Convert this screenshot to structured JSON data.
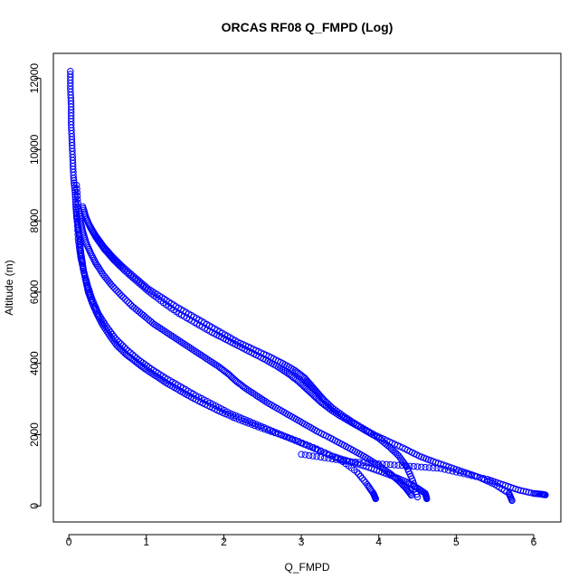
{
  "chart_data": {
    "type": "scatter",
    "title": "ORCAS RF08 Q_FMPD (Log)",
    "xlabel": "Q_FMPD",
    "ylabel": "Altitude (m)",
    "xlim": [
      -0.2,
      6.35
    ],
    "ylim": [
      -450,
      12700
    ],
    "xticks": [
      0,
      1,
      2,
      3,
      4,
      5,
      6
    ],
    "yticks": [
      0,
      2000,
      4000,
      6000,
      8000,
      10000,
      12000
    ],
    "grid": false,
    "legend": "none",
    "marker": "open-circle",
    "color": "#0000ff",
    "series": [
      {
        "profile": "steep-left",
        "x": [
          0.02,
          0.02,
          0.03,
          0.03,
          0.04,
          0.05,
          0.06,
          0.08,
          0.09,
          0.1,
          0.12,
          0.14,
          0.15,
          0.17,
          0.19,
          0.22,
          0.25,
          0.3,
          0.36,
          0.43,
          0.52,
          0.62,
          0.74,
          0.86,
          0.98,
          1.12,
          1.26,
          1.42,
          1.58,
          1.76,
          1.95,
          2.16,
          2.4,
          2.66,
          2.92,
          3.2,
          3.5,
          3.72,
          3.85,
          3.93,
          3.96
        ],
        "y": [
          12200,
          11700,
          11200,
          10700,
          10200,
          9700,
          9200,
          8800,
          8400,
          8100,
          7800,
          7500,
          7200,
          6900,
          6600,
          6300,
          6000,
          5700,
          5400,
          5100,
          4800,
          4500,
          4250,
          4050,
          3850,
          3650,
          3450,
          3250,
          3050,
          2850,
          2650,
          2450,
          2250,
          2050,
          1850,
          1600,
          1300,
          950,
          600,
          350,
          200
        ]
      },
      {
        "profile": "mid-branch",
        "x": [
          0.1,
          0.12,
          0.15,
          0.18,
          0.22,
          0.28,
          0.35,
          0.44,
          0.55,
          0.68,
          0.82,
          0.96,
          1.1,
          1.24,
          1.38,
          1.52,
          1.66,
          1.8,
          1.94,
          2.06,
          2.16,
          2.28,
          2.42,
          2.56,
          2.72,
          2.88,
          3.04,
          3.2,
          3.38,
          3.55,
          3.72,
          3.88,
          4.02,
          4.15,
          4.26,
          4.35,
          4.42
        ],
        "y": [
          9000,
          8400,
          8000,
          7700,
          7400,
          7100,
          6800,
          6500,
          6200,
          5900,
          5600,
          5350,
          5100,
          4900,
          4700,
          4500,
          4300,
          4100,
          3900,
          3700,
          3500,
          3300,
          3100,
          2900,
          2700,
          2500,
          2300,
          2100,
          1900,
          1700,
          1500,
          1300,
          1100,
          900,
          700,
          500,
          300
        ]
      },
      {
        "profile": "inner-hump",
        "x": [
          0.18,
          0.22,
          0.28,
          0.36,
          0.46,
          0.58,
          0.72,
          0.88,
          1.04,
          1.22,
          1.42,
          1.62,
          1.82,
          2.0,
          2.18,
          2.36,
          2.54,
          2.7,
          2.84,
          2.96,
          3.06,
          3.16,
          3.26,
          3.38,
          3.52,
          3.68,
          3.84,
          4.0,
          4.14,
          4.26,
          4.36,
          4.44,
          4.5
        ],
        "y": [
          8400,
          8100,
          7800,
          7500,
          7200,
          6900,
          6600,
          6300,
          6000,
          5700,
          5400,
          5150,
          4900,
          4700,
          4500,
          4300,
          4100,
          3900,
          3700,
          3500,
          3300,
          3100,
          2900,
          2700,
          2500,
          2300,
          2100,
          1900,
          1650,
          1400,
          1100,
          700,
          250
        ]
      },
      {
        "profile": "outer-hump",
        "x": [
          0.2,
          0.26,
          0.34,
          0.44,
          0.56,
          0.7,
          0.86,
          1.02,
          1.2,
          1.38,
          1.58,
          1.78,
          1.98,
          2.18,
          2.38,
          2.58,
          2.76,
          2.92,
          3.04,
          3.12,
          3.2,
          3.28,
          3.4,
          3.56,
          3.74,
          3.94,
          4.14,
          4.34,
          4.52,
          4.7,
          4.9,
          5.1,
          5.3,
          5.5,
          5.68,
          5.72
        ],
        "y": [
          8200,
          7900,
          7600,
          7300,
          7000,
          6700,
          6400,
          6100,
          5850,
          5600,
          5350,
          5100,
          4850,
          4600,
          4400,
          4200,
          4000,
          3800,
          3600,
          3400,
          3200,
          3000,
          2750,
          2500,
          2250,
          2000,
          1800,
          1600,
          1400,
          1250,
          1100,
          950,
          800,
          600,
          350,
          150
        ]
      },
      {
        "profile": "lower-branch",
        "x": [
          0.1,
          0.12,
          0.15,
          0.19,
          0.24,
          0.3,
          0.38,
          0.48,
          0.6,
          0.74,
          0.9,
          1.06,
          1.24,
          1.44,
          1.64,
          1.86,
          2.08,
          2.3,
          2.52,
          2.74,
          2.96,
          3.18,
          3.4,
          3.62,
          3.84,
          4.04,
          4.22,
          4.38,
          4.5,
          4.6,
          4.62
        ],
        "y": [
          8200,
          7500,
          7000,
          6600,
          6200,
          5800,
          5400,
          5050,
          4700,
          4400,
          4100,
          3850,
          3600,
          3350,
          3100,
          2850,
          2600,
          2400,
          2200,
          2000,
          1800,
          1600,
          1400,
          1250,
          1100,
          950,
          800,
          650,
          500,
          350,
          200
        ]
      },
      {
        "profile": "surface-run",
        "x": [
          3.0,
          3.3,
          3.6,
          3.9,
          4.2,
          4.5,
          4.8,
          5.1,
          5.4,
          5.6,
          5.8,
          6.0,
          6.1,
          6.15
        ],
        "y": [
          1450,
          1350,
          1250,
          1200,
          1150,
          1100,
          1050,
          900,
          750,
          600,
          450,
          350,
          330,
          310
        ]
      }
    ]
  }
}
